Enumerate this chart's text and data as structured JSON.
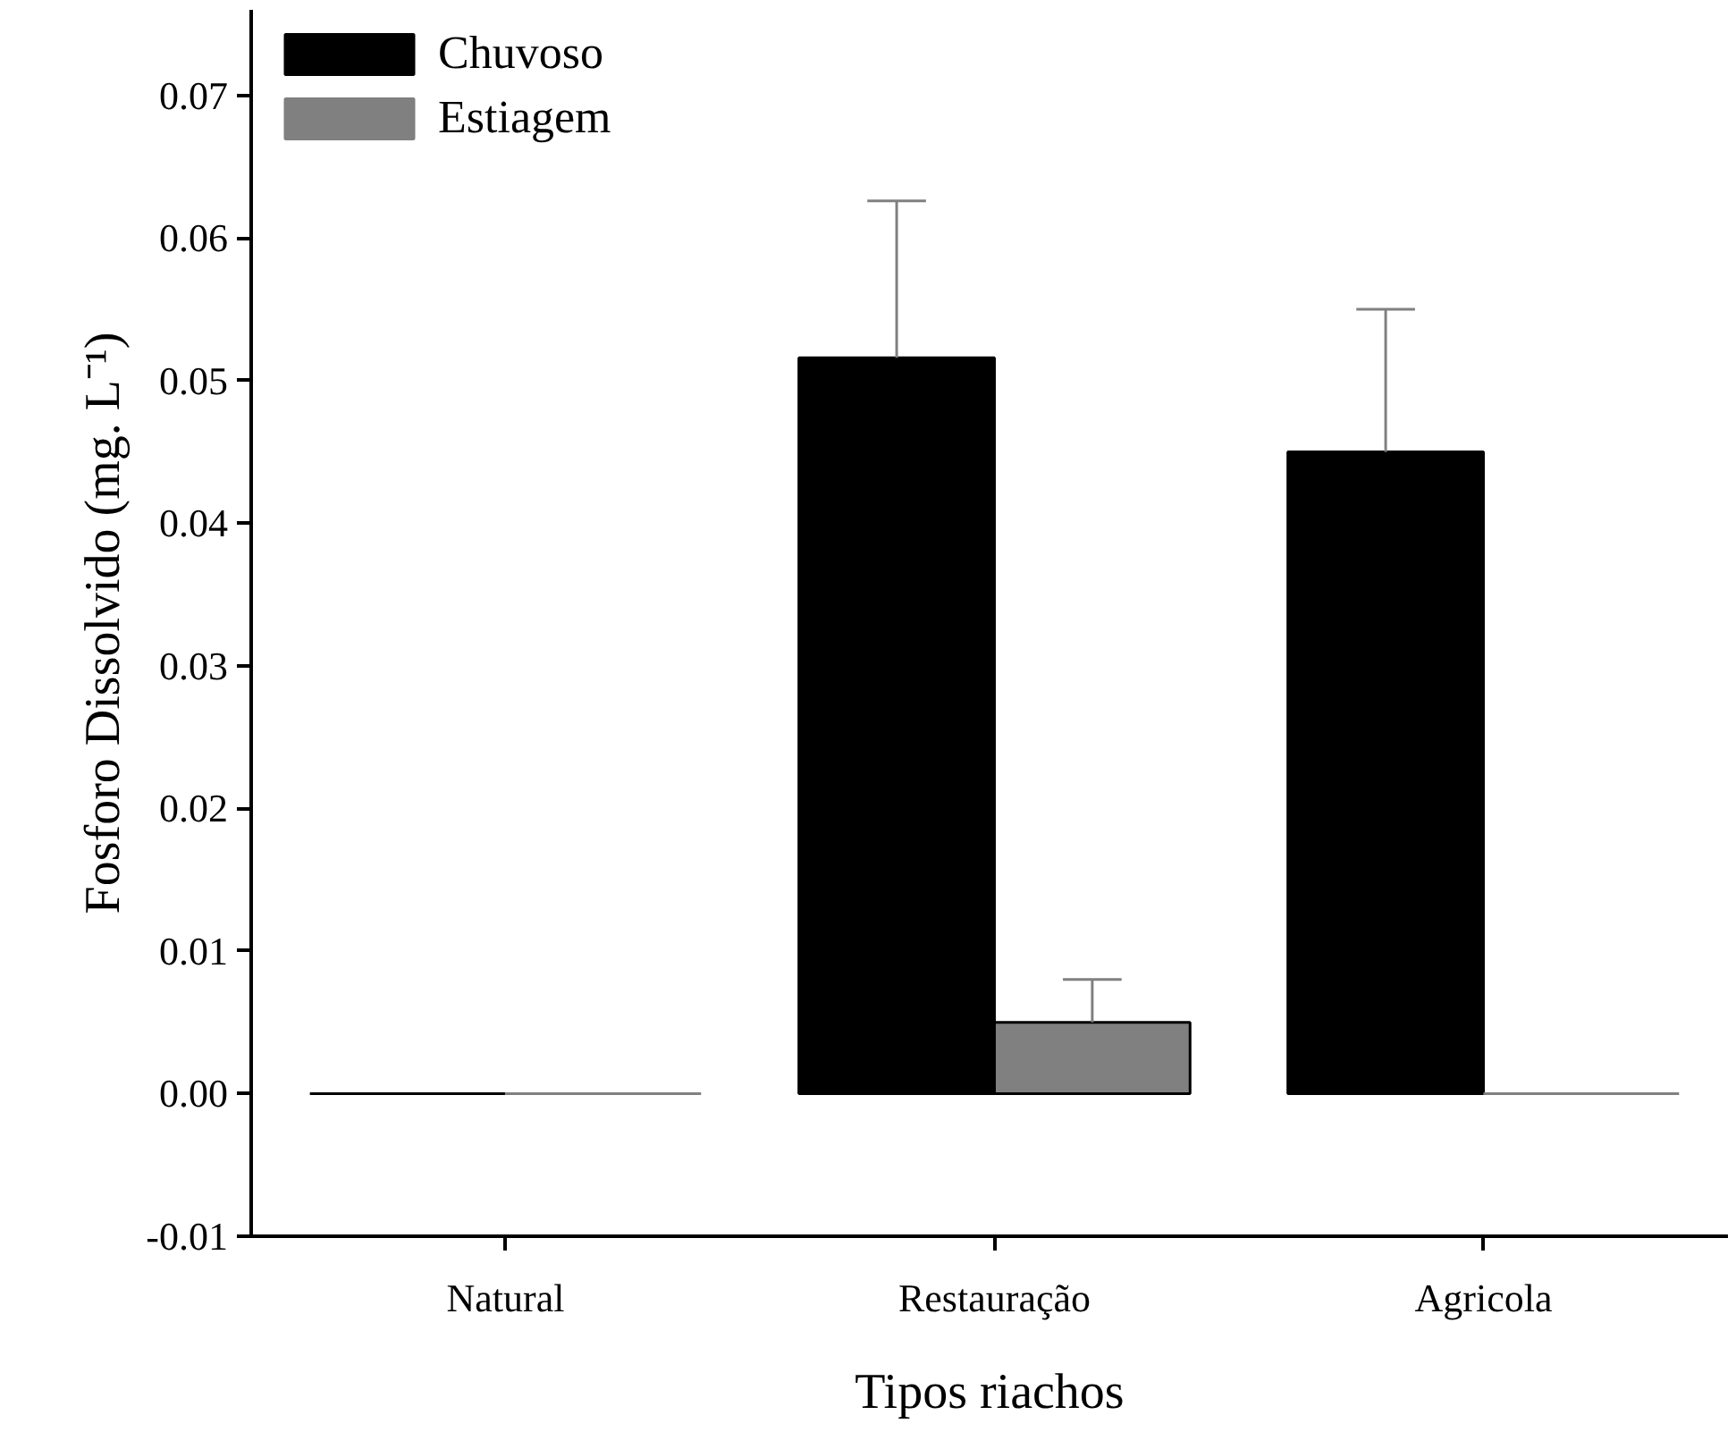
{
  "chart_data": {
    "type": "bar",
    "xlabel": "Tipos riachos",
    "ylabel": "Fosforo Dissolvido (mg. L⁻¹)",
    "categories": [
      "Natural",
      "Restauração",
      "Agricola"
    ],
    "series": [
      {
        "name": "Chuvoso",
        "color": "#000000",
        "values": [
          0.0,
          0.0516,
          0.045
        ],
        "errors": [
          null,
          [
            0.0516,
            0.0626
          ],
          [
            0.045,
            0.055
          ]
        ]
      },
      {
        "name": "Estiagem",
        "color": "#808080",
        "values": [
          0.0,
          0.005,
          0.0
        ],
        "errors": [
          null,
          [
            0.005,
            0.008
          ],
          null
        ]
      }
    ],
    "ylim": [
      -0.01,
      0.076
    ],
    "yticks": [
      {
        "value": -0.01,
        "label": "-0.01"
      },
      {
        "value": 0.0,
        "label": "0.00"
      },
      {
        "value": 0.01,
        "label": "0.01"
      },
      {
        "value": 0.02,
        "label": "0.02"
      },
      {
        "value": 0.03,
        "label": "0.03"
      },
      {
        "value": 0.04,
        "label": "0.04"
      },
      {
        "value": 0.05,
        "label": "0.05"
      },
      {
        "value": 0.06,
        "label": "0.06"
      },
      {
        "value": 0.07,
        "label": "0.07"
      }
    ],
    "grid": false,
    "legend": "top left"
  }
}
